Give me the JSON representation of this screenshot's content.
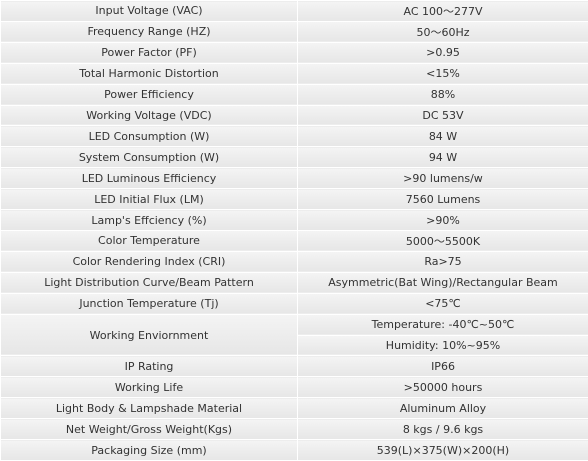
{
  "table": {
    "rows": [
      {
        "label": "Input Voltage (VAC)",
        "values": [
          "AC 100～277V"
        ]
      },
      {
        "label": "Frequency Range (HZ)",
        "values": [
          "50～60Hz"
        ]
      },
      {
        "label": "Power Factor (PF)",
        "values": [
          ">0.95"
        ]
      },
      {
        "label": "Total Harmonic Distortion",
        "values": [
          "<15%"
        ]
      },
      {
        "label": "Power Efficiency",
        "values": [
          "88%"
        ]
      },
      {
        "label": "Working Voltage (VDC)",
        "values": [
          "DC 53V"
        ]
      },
      {
        "label": "LED Consumption (W)",
        "values": [
          "84 W"
        ]
      },
      {
        "label": "System Consumption (W)",
        "values": [
          "94 W"
        ]
      },
      {
        "label": "LED Luminous Efficiency",
        "values": [
          ">90 lumens/w"
        ]
      },
      {
        "label": "LED Initial Flux (LM)",
        "values": [
          "7560 Lumens"
        ]
      },
      {
        "label": "Lamp's Effciency (%)",
        "values": [
          ">90%"
        ]
      },
      {
        "label": "Color Temperature",
        "values": [
          "5000～5500K"
        ]
      },
      {
        "label": "Color Rendering Index (CRI)",
        "values": [
          "Ra>75"
        ]
      },
      {
        "label": "Light Distribution Curve/Beam Pattern",
        "values": [
          "Asymmetric(Bat Wing)/Rectangular Beam"
        ]
      },
      {
        "label": "Junction Temperature (Tj)",
        "values": [
          "<75℃"
        ]
      },
      {
        "label": "Working Enviornment",
        "values": [
          "Temperature: -40℃~50℃",
          "Humidity: 10%~95%"
        ]
      },
      {
        "label": "IP Rating",
        "values": [
          "IP66"
        ]
      },
      {
        "label": "Working Life",
        "values": [
          ">50000 hours"
        ]
      },
      {
        "label": "Light Body & Lampshade Material",
        "values": [
          "Aluminum Alloy"
        ]
      },
      {
        "label": "Net Weight/Gross Weight(Kgs)",
        "values": [
          "8 kgs / 9.6 kgs"
        ]
      },
      {
        "label": "Packaging Size (mm)",
        "values": [
          "539(L)×375(W)×200(H)"
        ]
      }
    ]
  }
}
